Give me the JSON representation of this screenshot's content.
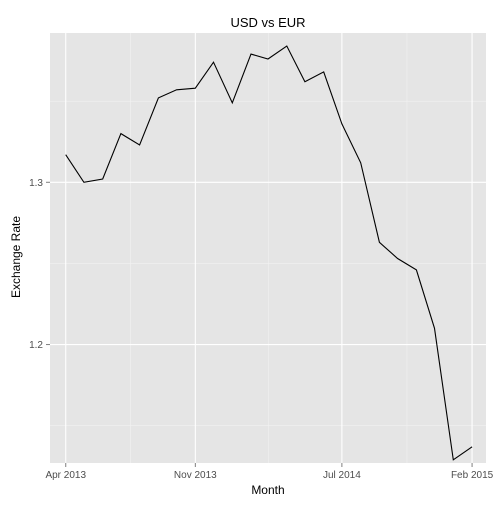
{
  "chart_data": {
    "type": "line",
    "title": "USD vs EUR",
    "xlabel": "Month",
    "ylabel": "Exchange Rate",
    "x_ticks": [
      {
        "label": "Apr 2013",
        "date": "2013-04-01"
      },
      {
        "label": "Nov 2013",
        "date": "2013-11-01"
      },
      {
        "label": "Jul 2014",
        "date": "2014-07-01"
      },
      {
        "label": "Feb 2015",
        "date": "2015-02-01"
      }
    ],
    "y_ticks": [
      1.2,
      1.3
    ],
    "ylim": [
      1.127,
      1.392
    ],
    "xlim": [
      "2013-03-06",
      "2015-02-24"
    ],
    "grid": true,
    "background": "#e5e5e5",
    "line_color": "#000000",
    "x": [
      "2013-04-01",
      "2013-05-01",
      "2013-06-01",
      "2013-07-01",
      "2013-08-01",
      "2013-09-01",
      "2013-10-01",
      "2013-11-01",
      "2013-12-01",
      "2014-01-01",
      "2014-02-01",
      "2014-03-01",
      "2014-04-01",
      "2014-05-01",
      "2014-06-01",
      "2014-07-01",
      "2014-08-01",
      "2014-09-01",
      "2014-10-01",
      "2014-11-01",
      "2014-12-01",
      "2015-01-01",
      "2015-02-01"
    ],
    "values": [
      1.317,
      1.3,
      1.302,
      1.33,
      1.323,
      1.352,
      1.357,
      1.358,
      1.374,
      1.349,
      1.379,
      1.376,
      1.384,
      1.362,
      1.368,
      1.336,
      1.312,
      1.263,
      1.253,
      1.246,
      1.21,
      1.129,
      1.137
    ]
  }
}
